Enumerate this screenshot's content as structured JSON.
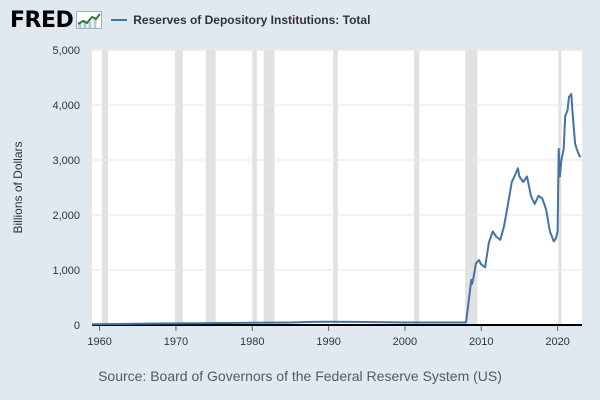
{
  "header": {
    "logo_text": "FRED",
    "logo_icon": "fred-trend-icon"
  },
  "colors": {
    "background": "#e1e9f0",
    "plot_background": "#ffffff",
    "recession_shading": "#e1e1e1",
    "series_line": "#4572a7",
    "grid": "#e6e6e6"
  },
  "chart_data": {
    "type": "line",
    "title": "",
    "xlabel": "",
    "ylabel": "Billions of Dollars",
    "xlim": [
      1959,
      2023.2
    ],
    "ylim": [
      0,
      5000
    ],
    "x_ticks": [
      1960,
      1970,
      1980,
      1990,
      2000,
      2010,
      2020
    ],
    "x_tick_labels": [
      "1960",
      "1970",
      "1980",
      "1990",
      "2000",
      "2010",
      "2020"
    ],
    "y_ticks": [
      0,
      1000,
      2000,
      3000,
      4000,
      5000
    ],
    "y_tick_labels": [
      "0",
      "1,000",
      "2,000",
      "3,000",
      "4,000",
      "5,000"
    ],
    "grid": true,
    "legend_position": "top-left",
    "recessions": [
      [
        1960.3,
        1961.1
      ],
      [
        1969.9,
        1970.9
      ],
      [
        1973.9,
        1975.2
      ],
      [
        1980.0,
        1980.6
      ],
      [
        1981.5,
        1982.9
      ],
      [
        1990.6,
        1991.2
      ],
      [
        2001.2,
        2001.9
      ],
      [
        2007.9,
        2009.5
      ],
      [
        2020.1,
        2020.4
      ]
    ],
    "series": [
      {
        "name": "Reserves of Depository Institutions: Total",
        "x": [
          1959,
          1965,
          1970,
          1975,
          1980,
          1985,
          1988,
          1990,
          1995,
          2000,
          2005,
          2008,
          2008.7,
          2008.8,
          2009.0,
          2009.3,
          2009.7,
          2010.0,
          2010.5,
          2011.0,
          2011.5,
          2012.0,
          2012.5,
          2013.0,
          2013.5,
          2014.0,
          2014.5,
          2014.8,
          2015.0,
          2015.5,
          2016.0,
          2016.5,
          2017.0,
          2017.5,
          2018.0,
          2018.5,
          2019.0,
          2019.5,
          2019.8,
          2020.0,
          2020.15,
          2020.3,
          2020.5,
          2020.8,
          2021.0,
          2021.3,
          2021.5,
          2021.8,
          2022.0,
          2022.3,
          2022.5,
          2022.8,
          2023.0
        ],
        "values": [
          12,
          22,
          29,
          34,
          40,
          45,
          56,
          60,
          55,
          45,
          45,
          45,
          820,
          750,
          870,
          1120,
          1180,
          1100,
          1050,
          1500,
          1700,
          1600,
          1550,
          1800,
          2200,
          2600,
          2750,
          2850,
          2700,
          2600,
          2700,
          2350,
          2200,
          2350,
          2300,
          2100,
          1700,
          1520,
          1580,
          1700,
          3200,
          2700,
          3000,
          3200,
          3800,
          3900,
          4150,
          4200,
          3800,
          3300,
          3200,
          3100,
          3050
        ]
      }
    ]
  },
  "source_text": "Source: Board of Governors of the Federal Reserve System (US)"
}
